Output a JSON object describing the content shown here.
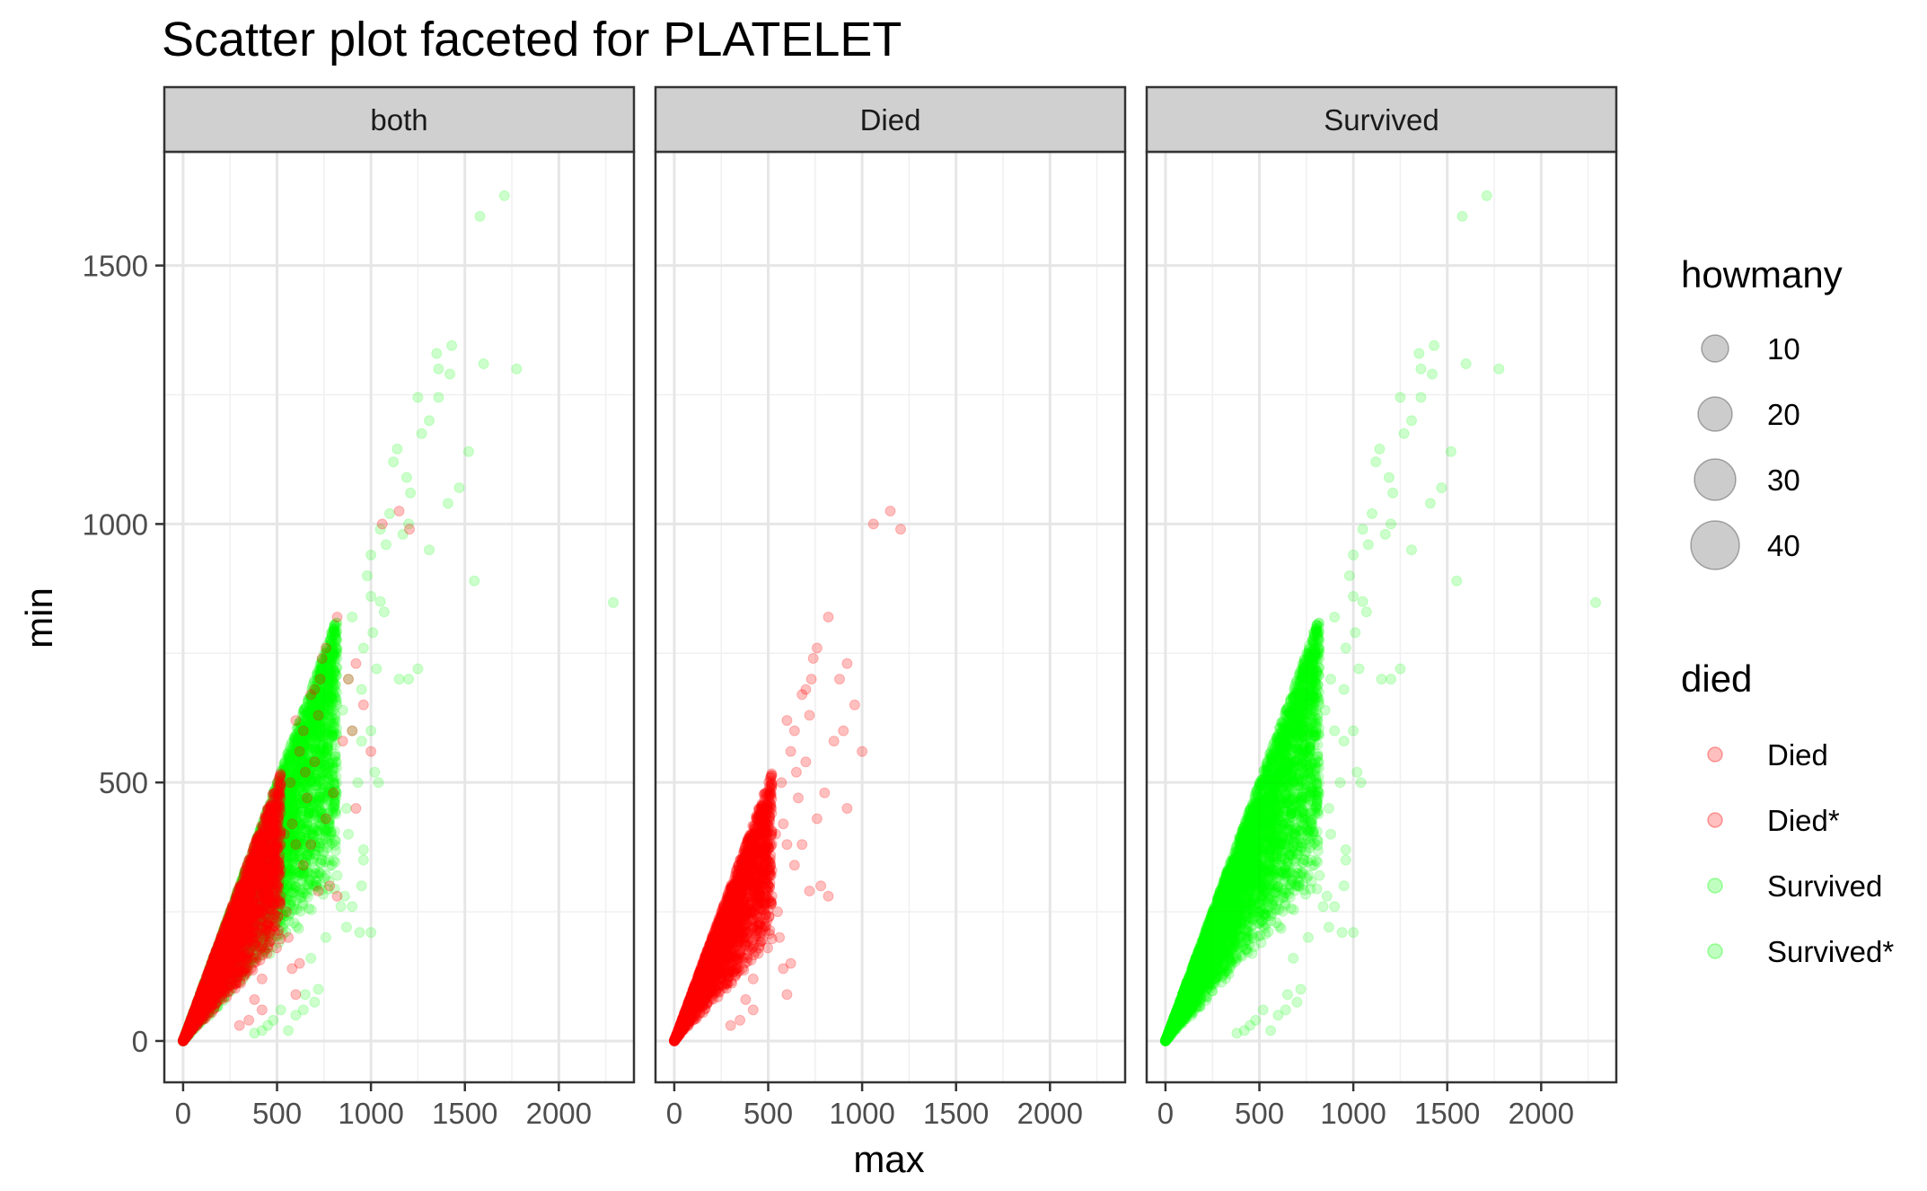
{
  "chart_data": {
    "type": "scatter",
    "title": "Scatter plot faceted for PLATELET",
    "xlabel": "max",
    "ylabel": "min",
    "xlim": [
      -100,
      2400
    ],
    "ylim": [
      -80,
      1720
    ],
    "x_ticks": [
      0,
      500,
      1000,
      1500,
      2000
    ],
    "y_ticks": [
      0,
      500,
      1000,
      1500
    ],
    "x_tick_labels": [
      "0",
      "500",
      "1000",
      "1500",
      "2000"
    ],
    "y_tick_labels": [
      "0",
      "500",
      "1000",
      "1500"
    ],
    "grid": true,
    "panel_background": "#ffffff",
    "strip_background": "#d0d0d0",
    "facets": [
      {
        "label": "both",
        "shows": [
          "Survived",
          "Died"
        ]
      },
      {
        "label": "Died",
        "shows": [
          "Died"
        ]
      },
      {
        "label": "Survived",
        "shows": [
          "Survived"
        ]
      }
    ],
    "series": [
      {
        "name": "Died",
        "color": "#ff0000",
        "opacity": 0.25,
        "dense_region": {
          "max_range": [
            0,
            520
          ],
          "min_over_max_ratio": [
            0.35,
            1.0
          ],
          "n": 2600
        },
        "outliers": [
          [
            1060,
            1000
          ],
          [
            1150,
            1025
          ],
          [
            1205,
            990
          ],
          [
            820,
            820
          ],
          [
            760,
            760
          ],
          [
            740,
            740
          ],
          [
            730,
            700
          ],
          [
            700,
            680
          ],
          [
            680,
            670
          ],
          [
            920,
            730
          ],
          [
            880,
            700
          ],
          [
            960,
            650
          ],
          [
            1000,
            560
          ],
          [
            900,
            600
          ],
          [
            850,
            580
          ],
          [
            920,
            450
          ],
          [
            800,
            480
          ],
          [
            760,
            430
          ],
          [
            780,
            300
          ],
          [
            720,
            290
          ],
          [
            820,
            280
          ],
          [
            720,
            630
          ],
          [
            650,
            520
          ],
          [
            640,
            600
          ],
          [
            620,
            560
          ],
          [
            660,
            470
          ],
          [
            700,
            540
          ],
          [
            680,
            380
          ],
          [
            640,
            340
          ],
          [
            600,
            380
          ],
          [
            580,
            420
          ],
          [
            570,
            500
          ],
          [
            600,
            620
          ],
          [
            600,
            90
          ],
          [
            580,
            140
          ],
          [
            620,
            150
          ],
          [
            560,
            200
          ],
          [
            520,
            280
          ],
          [
            550,
            250
          ],
          [
            500,
            300
          ],
          [
            480,
            340
          ],
          [
            450,
            180
          ],
          [
            420,
            120
          ],
          [
            380,
            80
          ],
          [
            350,
            40
          ],
          [
            300,
            30
          ],
          [
            420,
            60
          ],
          [
            460,
            230
          ],
          [
            520,
            330
          ],
          [
            540,
            400
          ]
        ]
      },
      {
        "name": "Survived",
        "color": "#00ff00",
        "opacity": 0.2,
        "dense_region": {
          "max_range": [
            0,
            820
          ],
          "min_over_max_ratio": [
            0.35,
            1.0
          ],
          "n": 5200
        },
        "outliers": [
          [
            1710,
            1635
          ],
          [
            1580,
            1595
          ],
          [
            1430,
            1345
          ],
          [
            1350,
            1330
          ],
          [
            1360,
            1300
          ],
          [
            1420,
            1290
          ],
          [
            1600,
            1310
          ],
          [
            1775,
            1300
          ],
          [
            1250,
            1245
          ],
          [
            1360,
            1245
          ],
          [
            1310,
            1200
          ],
          [
            1270,
            1175
          ],
          [
            1140,
            1145
          ],
          [
            1120,
            1120
          ],
          [
            1520,
            1140
          ],
          [
            1470,
            1070
          ],
          [
            1190,
            1090
          ],
          [
            1210,
            1060
          ],
          [
            1410,
            1040
          ],
          [
            1100,
            1020
          ],
          [
            1170,
            980
          ],
          [
            1310,
            950
          ],
          [
            1550,
            890
          ],
          [
            2290,
            848
          ],
          [
            1200,
            1000
          ],
          [
            1050,
            990
          ],
          [
            1080,
            960
          ],
          [
            1000,
            940
          ],
          [
            980,
            900
          ],
          [
            1000,
            860
          ],
          [
            1050,
            850
          ],
          [
            1070,
            830
          ],
          [
            1010,
            790
          ],
          [
            900,
            820
          ],
          [
            960,
            760
          ],
          [
            1030,
            720
          ],
          [
            1250,
            720
          ],
          [
            1200,
            700
          ],
          [
            1150,
            700
          ],
          [
            950,
            680
          ],
          [
            1000,
            600
          ],
          [
            950,
            580
          ],
          [
            900,
            600
          ],
          [
            1020,
            520
          ],
          [
            1040,
            500
          ],
          [
            930,
            500
          ],
          [
            870,
            450
          ],
          [
            880,
            400
          ],
          [
            960,
            370
          ],
          [
            950,
            300
          ],
          [
            960,
            350
          ],
          [
            820,
            320
          ],
          [
            860,
            280
          ],
          [
            840,
            260
          ],
          [
            870,
            220
          ],
          [
            940,
            210
          ],
          [
            1000,
            210
          ],
          [
            760,
            200
          ],
          [
            680,
            160
          ],
          [
            720,
            100
          ],
          [
            650,
            90
          ],
          [
            640,
            60
          ],
          [
            700,
            75
          ],
          [
            600,
            50
          ],
          [
            560,
            20
          ],
          [
            520,
            60
          ],
          [
            480,
            40
          ],
          [
            450,
            30
          ],
          [
            420,
            20
          ],
          [
            380,
            15
          ],
          [
            900,
            260
          ],
          [
            780,
            420
          ],
          [
            780,
            380
          ],
          [
            800,
            500
          ],
          [
            760,
            560
          ],
          [
            850,
            640
          ],
          [
            880,
            700
          ]
        ]
      }
    ],
    "legends": {
      "size": {
        "title": "howmany",
        "entries": [
          "10",
          "20",
          "30",
          "40"
        ]
      },
      "color": {
        "title": "died",
        "entries": [
          {
            "label": "Died",
            "color": "#ff0000"
          },
          {
            "label": "Died*",
            "color": "#ff0000"
          },
          {
            "label": "Survived",
            "color": "#00ff00"
          },
          {
            "label": "Survived*",
            "color": "#00ff00"
          }
        ]
      }
    }
  }
}
